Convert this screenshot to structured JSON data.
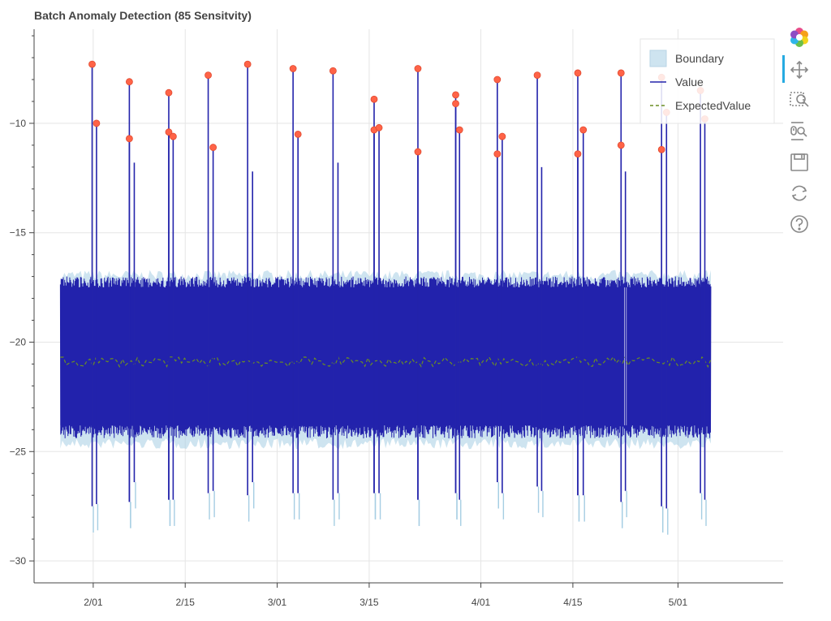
{
  "title": "Batch Anomaly Detection (85 Sensitvity)",
  "colors": {
    "value_line": "#2323ab",
    "boundary_fill": "#a6cee3",
    "expected_line": "#6b8e23",
    "anomaly_dot": "#ff6347",
    "grid": "#e5e5e5",
    "axis": "#444444",
    "toolbar_active": "#26aae1",
    "toolbar_icon": "#888888"
  },
  "toolbar": {
    "tools": [
      {
        "name": "bokeh-logo-icon"
      },
      {
        "name": "pan-tool-icon"
      },
      {
        "name": "box-zoom-icon"
      },
      {
        "name": "wheel-zoom-icon"
      },
      {
        "name": "save-icon"
      },
      {
        "name": "reset-icon"
      },
      {
        "name": "help-icon"
      }
    ]
  },
  "chart_data": {
    "type": "line",
    "title": "Batch Anomaly Detection (85 Sensitvity)",
    "xlabel": "",
    "ylabel": "",
    "x_range": [
      "2021-01-23",
      "2021-05-17"
    ],
    "ylim": [
      -31.0,
      -5.7
    ],
    "x_ticks": [
      "2/01",
      "2/15",
      "3/01",
      "3/15",
      "4/01",
      "4/15",
      "5/01"
    ],
    "x_tick_dates": [
      "2021-02-01",
      "2021-02-15",
      "2021-03-01",
      "2021-03-15",
      "2021-04-01",
      "2021-04-15",
      "2021-05-01"
    ],
    "y_ticks": [
      -10,
      -15,
      -20,
      -25,
      -30
    ],
    "grid": true,
    "legend_position": "top-right",
    "data_start": "2021-01-27",
    "data_end": "2021-05-06",
    "series": [
      {
        "name": "Boundary",
        "type": "band",
        "lower_approx": -24.3,
        "upper_approx": -17.5
      },
      {
        "name": "Value",
        "type": "line",
        "band_low": -23.8,
        "band_high": -17.5
      },
      {
        "name": "ExpectedValue",
        "type": "dashed-line",
        "y_approx": -20.9
      }
    ],
    "spikes": [
      {
        "x": "2021-01-31T20:00",
        "top": -7.3,
        "bottom": -27.5
      },
      {
        "x": "2021-02-01T12:00",
        "top": -10.0,
        "bottom": -27.4
      },
      {
        "x": "2021-02-06T12:00",
        "top": -8.1,
        "bottom": -27.3
      },
      {
        "x": "2021-02-06T12:00",
        "top": -10.7,
        "bottom": -27.3
      },
      {
        "x": "2021-02-07T06:00",
        "top": -11.8,
        "bottom": -26.4
      },
      {
        "x": "2021-02-12T12:00",
        "top": -8.6,
        "bottom": -27.2
      },
      {
        "x": "2021-02-12T12:00",
        "top": -10.4,
        "bottom": -27.2
      },
      {
        "x": "2021-02-13T04:00",
        "top": -10.6,
        "bottom": -27.2
      },
      {
        "x": "2021-02-18T12:00",
        "top": -7.8,
        "bottom": -26.9
      },
      {
        "x": "2021-02-19T06:00",
        "top": -11.1,
        "bottom": -26.8
      },
      {
        "x": "2021-02-24T12:00",
        "top": -7.3,
        "bottom": -27.0
      },
      {
        "x": "2021-02-25T06:00",
        "top": -12.2,
        "bottom": -26.4
      },
      {
        "x": "2021-03-03T10:00",
        "top": -7.5,
        "bottom": -26.9
      },
      {
        "x": "2021-03-04T04:00",
        "top": -10.5,
        "bottom": -26.9
      },
      {
        "x": "2021-03-09T12:00",
        "top": -7.6,
        "bottom": -27.2
      },
      {
        "x": "2021-03-10T06:00",
        "top": -11.8,
        "bottom": -26.9
      },
      {
        "x": "2021-03-15T18:00",
        "top": -8.9,
        "bottom": -26.9
      },
      {
        "x": "2021-03-15T18:00",
        "top": -10.3,
        "bottom": -26.9
      },
      {
        "x": "2021-03-16T12:00",
        "top": -10.2,
        "bottom": -26.9
      },
      {
        "x": "2021-03-22T10:00",
        "top": -7.5,
        "bottom": -27.2
      },
      {
        "x": "2021-03-22T10:00",
        "top": -11.3,
        "bottom": -27.2
      },
      {
        "x": "2021-03-28T04:00",
        "top": -8.7,
        "bottom": -26.9
      },
      {
        "x": "2021-03-28T04:00",
        "top": -9.1,
        "bottom": -26.9
      },
      {
        "x": "2021-03-28T18:00",
        "top": -10.3,
        "bottom": -27.2
      },
      {
        "x": "2021-04-03T12:00",
        "top": -8.0,
        "bottom": -26.4
      },
      {
        "x": "2021-04-03T12:00",
        "top": -11.4,
        "bottom": -26.4
      },
      {
        "x": "2021-04-04T06:00",
        "top": -10.6,
        "bottom": -26.9
      },
      {
        "x": "2021-04-09T14:00",
        "top": -7.8,
        "bottom": -26.6
      },
      {
        "x": "2021-04-10T06:00",
        "top": -12.0,
        "bottom": -26.8
      },
      {
        "x": "2021-04-15T18:00",
        "top": -7.7,
        "bottom": -27.0
      },
      {
        "x": "2021-04-15T18:00",
        "top": -11.4,
        "bottom": -27.0
      },
      {
        "x": "2021-04-16T14:00",
        "top": -10.3,
        "bottom": -27.0
      },
      {
        "x": "2021-04-22T08:00",
        "top": -7.7,
        "bottom": -27.3
      },
      {
        "x": "2021-04-22T08:00",
        "top": -11.0,
        "bottom": -27.3
      },
      {
        "x": "2021-04-23T00:00",
        "top": -12.2,
        "bottom": -26.8
      },
      {
        "x": "2021-04-28T12:00",
        "top": -7.9,
        "bottom": -27.5
      },
      {
        "x": "2021-04-28T12:00",
        "top": -11.2,
        "bottom": -27.5
      },
      {
        "x": "2021-04-29T06:00",
        "top": -9.5,
        "bottom": -27.6
      },
      {
        "x": "2021-05-04T10:00",
        "top": -8.5,
        "bottom": -26.9
      },
      {
        "x": "2021-05-05T02:00",
        "top": -9.8,
        "bottom": -27.2
      }
    ],
    "anomalies": [
      {
        "x": "2021-01-31T20:00",
        "y": -7.3
      },
      {
        "x": "2021-02-01T12:00",
        "y": -10.0
      },
      {
        "x": "2021-02-06T12:00",
        "y": -8.1
      },
      {
        "x": "2021-02-06T12:00",
        "y": -10.7
      },
      {
        "x": "2021-02-12T12:00",
        "y": -8.6
      },
      {
        "x": "2021-02-12T12:00",
        "y": -10.4
      },
      {
        "x": "2021-02-13T04:00",
        "y": -10.6
      },
      {
        "x": "2021-02-18T12:00",
        "y": -7.8
      },
      {
        "x": "2021-02-19T06:00",
        "y": -11.1
      },
      {
        "x": "2021-02-24T12:00",
        "y": -7.3
      },
      {
        "x": "2021-03-03T10:00",
        "y": -7.5
      },
      {
        "x": "2021-03-04T04:00",
        "y": -10.5
      },
      {
        "x": "2021-03-09T12:00",
        "y": -7.6
      },
      {
        "x": "2021-03-15T18:00",
        "y": -8.9
      },
      {
        "x": "2021-03-15T18:00",
        "y": -10.3
      },
      {
        "x": "2021-03-16T12:00",
        "y": -10.2
      },
      {
        "x": "2021-03-22T10:00",
        "y": -7.5
      },
      {
        "x": "2021-03-22T10:00",
        "y": -11.3
      },
      {
        "x": "2021-03-28T04:00",
        "y": -8.7
      },
      {
        "x": "2021-03-28T04:00",
        "y": -9.1
      },
      {
        "x": "2021-03-28T18:00",
        "y": -10.3
      },
      {
        "x": "2021-04-03T12:00",
        "y": -8.0
      },
      {
        "x": "2021-04-03T12:00",
        "y": -11.4
      },
      {
        "x": "2021-04-04T06:00",
        "y": -10.6
      },
      {
        "x": "2021-04-09T14:00",
        "y": -7.8
      },
      {
        "x": "2021-04-15T18:00",
        "y": -7.7
      },
      {
        "x": "2021-04-15T18:00",
        "y": -11.4
      },
      {
        "x": "2021-04-16T14:00",
        "y": -10.3
      },
      {
        "x": "2021-04-22T08:00",
        "y": -7.7
      },
      {
        "x": "2021-04-22T08:00",
        "y": -11.0
      },
      {
        "x": "2021-04-28T12:00",
        "y": -7.9
      },
      {
        "x": "2021-04-28T12:00",
        "y": -11.2
      },
      {
        "x": "2021-04-29T06:00",
        "y": -9.5
      },
      {
        "x": "2021-05-04T10:00",
        "y": -8.5
      },
      {
        "x": "2021-05-05T02:00",
        "y": -9.8
      }
    ]
  }
}
